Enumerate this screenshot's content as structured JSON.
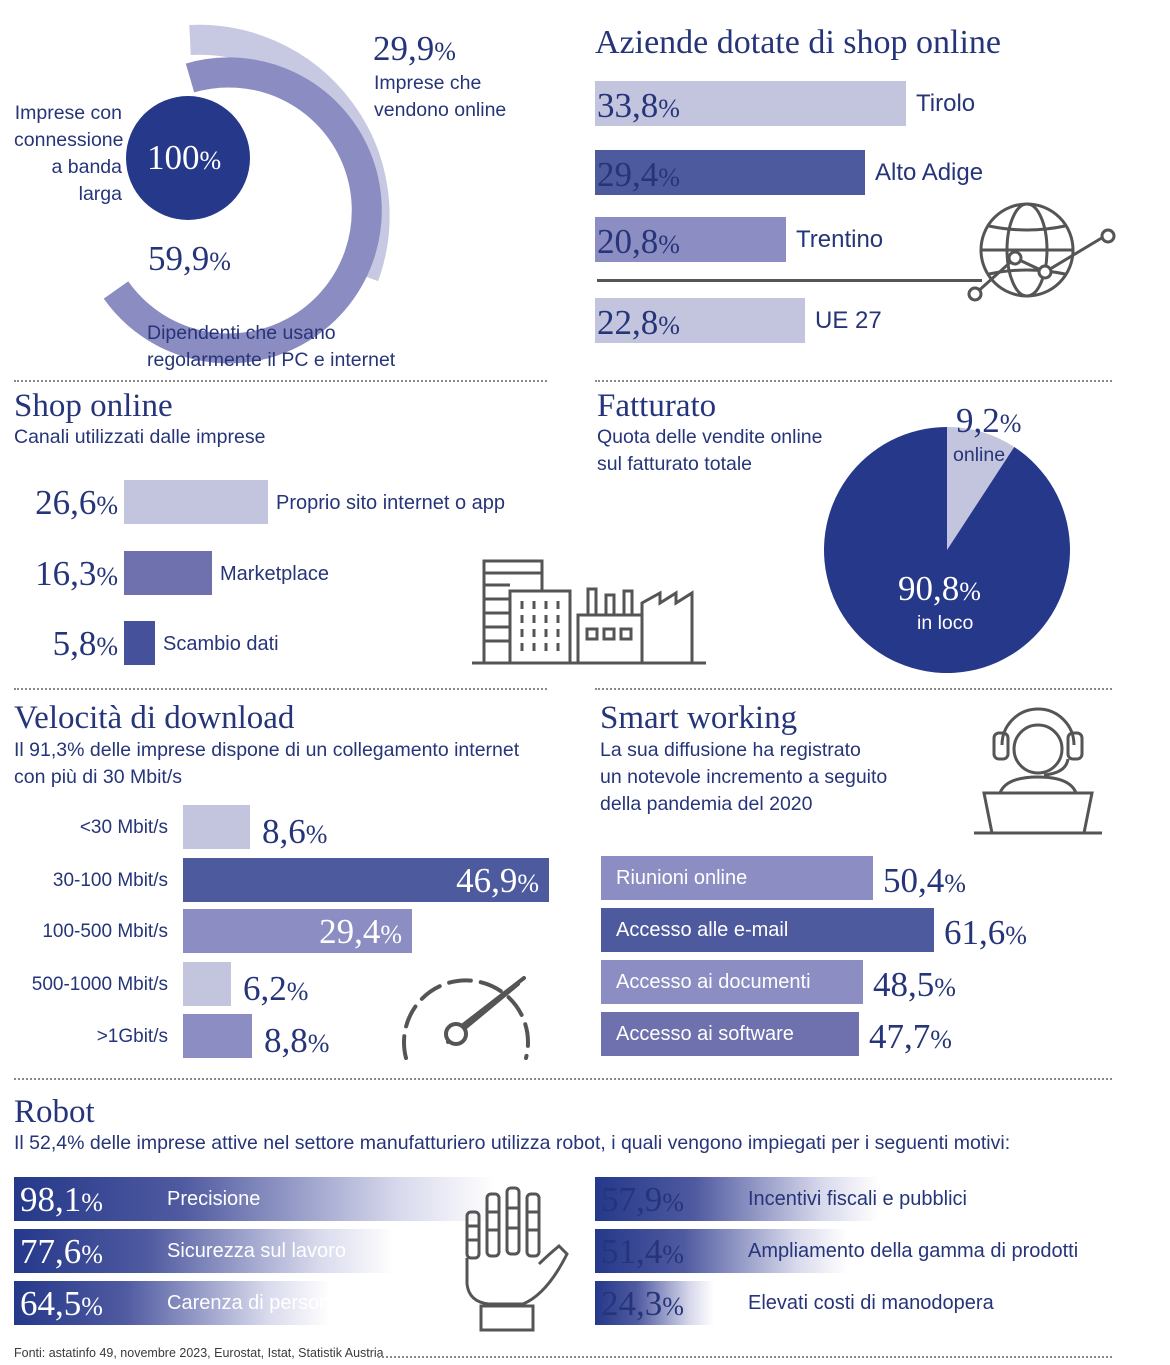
{
  "colors": {
    "dark": "#25388a",
    "mid": "#4e5a9e",
    "light": "#8c8dc2",
    "pale": "#c3c4de",
    "text": "#263579",
    "grey": "#555555"
  },
  "broadband": {
    "outer_value": "29,9",
    "outer_label_1": "Imprese che",
    "outer_label_2": "vendono online",
    "center_value": "100",
    "center_label_1": "Imprese con",
    "center_label_2": "connessione",
    "center_label_3": "a banda",
    "center_label_4": "larga",
    "mid_value": "59,9",
    "mid_label_1": "Dipendenti che usano",
    "mid_label_2": "regolarmente il PC e internet",
    "pct": "%"
  },
  "shops_region": {
    "title": "Aziende dotate di shop online",
    "icon": "globe-network-icon"
  },
  "shop_channels": {
    "title": "Shop online",
    "subtitle": "Canali utilizzati dalle imprese",
    "icon": "buildings-factory-icon"
  },
  "revenue": {
    "title": "Fatturato",
    "subtitle_1": "Quota delle vendite online",
    "subtitle_2": "sul fatturato totale"
  },
  "download": {
    "title": "Velocità di download",
    "subtitle_1": "Il 91,3% delle imprese dispone di un collegamento internet",
    "subtitle_2": "con più di 30 Mbit/s",
    "icon": "speedometer-icon"
  },
  "smart": {
    "title": "Smart working",
    "subtitle_1": "La sua diffusione ha registrato",
    "subtitle_2": "un notevole incremento a seguito",
    "subtitle_3": "della pandemia del 2020",
    "icon": "headset-laptop-icon"
  },
  "robot": {
    "title": "Robot",
    "subtitle": "Il 52,4% delle imprese attive nel settore manufatturiero utilizza robot, i quali vengono impiegati per i seguenti motivi:",
    "icon": "robot-hand-icon"
  },
  "source": "Fonti: astatinfo 49, novembre 2023, Eurostat, Istat, Statistik Austria",
  "chart_data": [
    {
      "type": "bar",
      "title": "Aziende dotate di shop online",
      "unit": "%",
      "categories": [
        "Tirolo",
        "Alto Adige",
        "Trentino",
        "UE 27"
      ],
      "values": [
        33.8,
        29.4,
        20.8,
        22.8
      ],
      "labels": [
        "33,8",
        "29,4",
        "20,8",
        "22,8"
      ]
    },
    {
      "type": "bar",
      "title": "Shop online",
      "unit": "%",
      "categories": [
        "Proprio sito internet o app",
        "Marketplace",
        "Scambio dati"
      ],
      "values": [
        26.6,
        16.3,
        5.8
      ],
      "labels": [
        "26,6",
        "16,3",
        "5,8"
      ]
    },
    {
      "type": "pie",
      "title": "Fatturato",
      "unit": "%",
      "categories": [
        "online",
        "in loco"
      ],
      "values": [
        9.2,
        90.8
      ],
      "labels": [
        "9,2",
        "90,8"
      ]
    },
    {
      "type": "bar",
      "title": "Velocità di download",
      "unit": "%",
      "categories": [
        "<30 Mbit/s",
        "30-100 Mbit/s",
        "100-500 Mbit/s",
        "500-1000 Mbit/s",
        ">1Gbit/s"
      ],
      "values": [
        8.6,
        46.9,
        29.4,
        6.2,
        8.8
      ],
      "labels": [
        "8,6",
        "46,9",
        "29,4",
        "6,2",
        "8,8"
      ]
    },
    {
      "type": "bar",
      "title": "Smart working",
      "unit": "%",
      "categories": [
        "Riunioni online",
        "Accesso alle e-mail",
        "Accesso ai documenti",
        "Accesso ai software"
      ],
      "values": [
        50.4,
        61.6,
        48.5,
        47.7
      ],
      "labels": [
        "50,4",
        "61,6",
        "48,5",
        "47,7"
      ]
    },
    {
      "type": "bar",
      "title": "Robot",
      "unit": "%",
      "categories": [
        "Precisione",
        "Sicurezza sul lavoro",
        "Carenza di personale",
        "Incentivi fiscali e pubblici",
        "Ampliamento della gamma di prodotti",
        "Elevati costi di manodopera"
      ],
      "values": [
        98.1,
        77.6,
        64.5,
        57.9,
        51.4,
        24.3
      ],
      "labels": [
        "98,1",
        "77,6",
        "64,5",
        "57,9",
        "51,4",
        "24,3"
      ]
    }
  ]
}
